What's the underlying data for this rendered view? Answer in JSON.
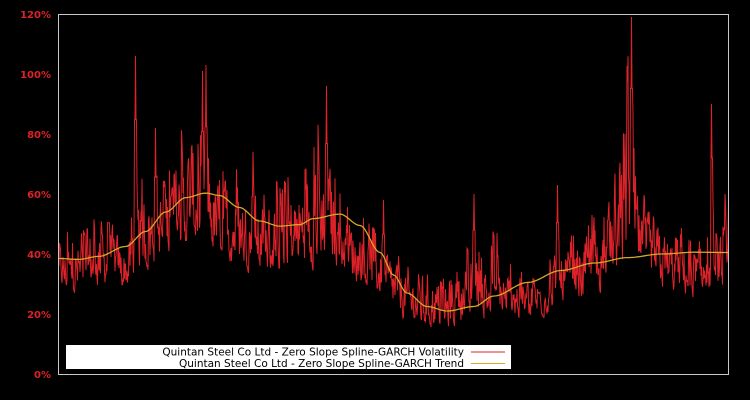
{
  "chart_data": {
    "type": "line",
    "title": "",
    "xlabel": "",
    "ylabel": "",
    "ylim": [
      0,
      120
    ],
    "yticks": [
      "0%",
      "20%",
      "40%",
      "60%",
      "80%",
      "100%",
      "120%"
    ],
    "grid": false,
    "legend_position": "lower-left",
    "colors": {
      "background": "#000000",
      "plot_border": "#c8c8c8",
      "tick_label": "#dd2229",
      "volatility": "#dd2229",
      "trend": "#d4a82a",
      "legend_bg": "#ffffff"
    },
    "series": [
      {
        "name": "Quintan Steel Co Ltd - Zero Slope Spline-GARCH Volatility",
        "note": "x is fraction of time axis (0..1); values in %; approximate envelope: base, typical high, spike highs",
        "x": [
          0.0,
          0.02,
          0.05,
          0.08,
          0.1,
          0.115,
          0.13,
          0.15,
          0.18,
          0.2,
          0.22,
          0.24,
          0.26,
          0.28,
          0.3,
          0.32,
          0.35,
          0.38,
          0.4,
          0.42,
          0.45,
          0.47,
          0.5,
          0.52,
          0.55,
          0.58,
          0.6,
          0.62,
          0.65,
          0.67,
          0.7,
          0.72,
          0.75,
          0.78,
          0.8,
          0.82,
          0.84,
          0.85,
          0.87,
          0.9,
          0.92,
          0.95,
          0.97,
          0.99,
          1.0
        ],
        "low": [
          28,
          24,
          27,
          28,
          26,
          30,
          32,
          34,
          38,
          40,
          38,
          36,
          34,
          33,
          32,
          31,
          32,
          33,
          34,
          32,
          28,
          25,
          19,
          16,
          14,
          13,
          15,
          14,
          15,
          17,
          17,
          18,
          21,
          23,
          24,
          28,
          30,
          31,
          30,
          26,
          25,
          24,
          24,
          25,
          24
        ],
        "high": [
          45,
          50,
          55,
          52,
          48,
          60,
          70,
          68,
          82,
          88,
          78,
          70,
          74,
          66,
          62,
          64,
          70,
          85,
          80,
          62,
          55,
          50,
          45,
          40,
          38,
          36,
          40,
          45,
          50,
          38,
          35,
          38,
          45,
          50,
          55,
          60,
          75,
          110,
          60,
          55,
          50,
          48,
          46,
          50,
          58
        ],
        "spikes": [
          [
            0.075,
            63
          ],
          [
            0.115,
            106
          ],
          [
            0.145,
            82
          ],
          [
            0.215,
            101
          ],
          [
            0.22,
            103
          ],
          [
            0.29,
            74
          ],
          [
            0.4,
            96
          ],
          [
            0.485,
            58
          ],
          [
            0.62,
            60
          ],
          [
            0.745,
            63
          ],
          [
            0.855,
            119
          ],
          [
            0.975,
            90
          ],
          [
            0.995,
            60
          ]
        ]
      },
      {
        "name": "Quintan Steel Co Ltd - Zero Slope Spline-GARCH Trend",
        "x": [
          0.0,
          0.03,
          0.06,
          0.1,
          0.13,
          0.16,
          0.19,
          0.22,
          0.24,
          0.27,
          0.3,
          0.33,
          0.36,
          0.38,
          0.42,
          0.45,
          0.48,
          0.5,
          0.52,
          0.55,
          0.58,
          0.62,
          0.65,
          0.7,
          0.75,
          0.8,
          0.85,
          0.9,
          0.95,
          1.0
        ],
        "values": [
          38.5,
          38.2,
          39.2,
          42.5,
          47.5,
          54,
          58.8,
          60.3,
          59.5,
          55.5,
          51,
          49.3,
          49.8,
          51.8,
          53.3,
          49.5,
          40.5,
          33,
          27,
          22.5,
          21,
          22.5,
          26,
          30.5,
          34.5,
          37,
          38.8,
          40,
          40.6,
          40.5
        ]
      }
    ]
  },
  "legend": {
    "items": [
      {
        "label": "Quintan Steel Co Ltd - Zero Slope Spline-GARCH Volatility",
        "color": "#dd2229"
      },
      {
        "label": "Quintan Steel Co Ltd - Zero Slope Spline-GARCH Trend",
        "color": "#d4a82a"
      }
    ]
  }
}
